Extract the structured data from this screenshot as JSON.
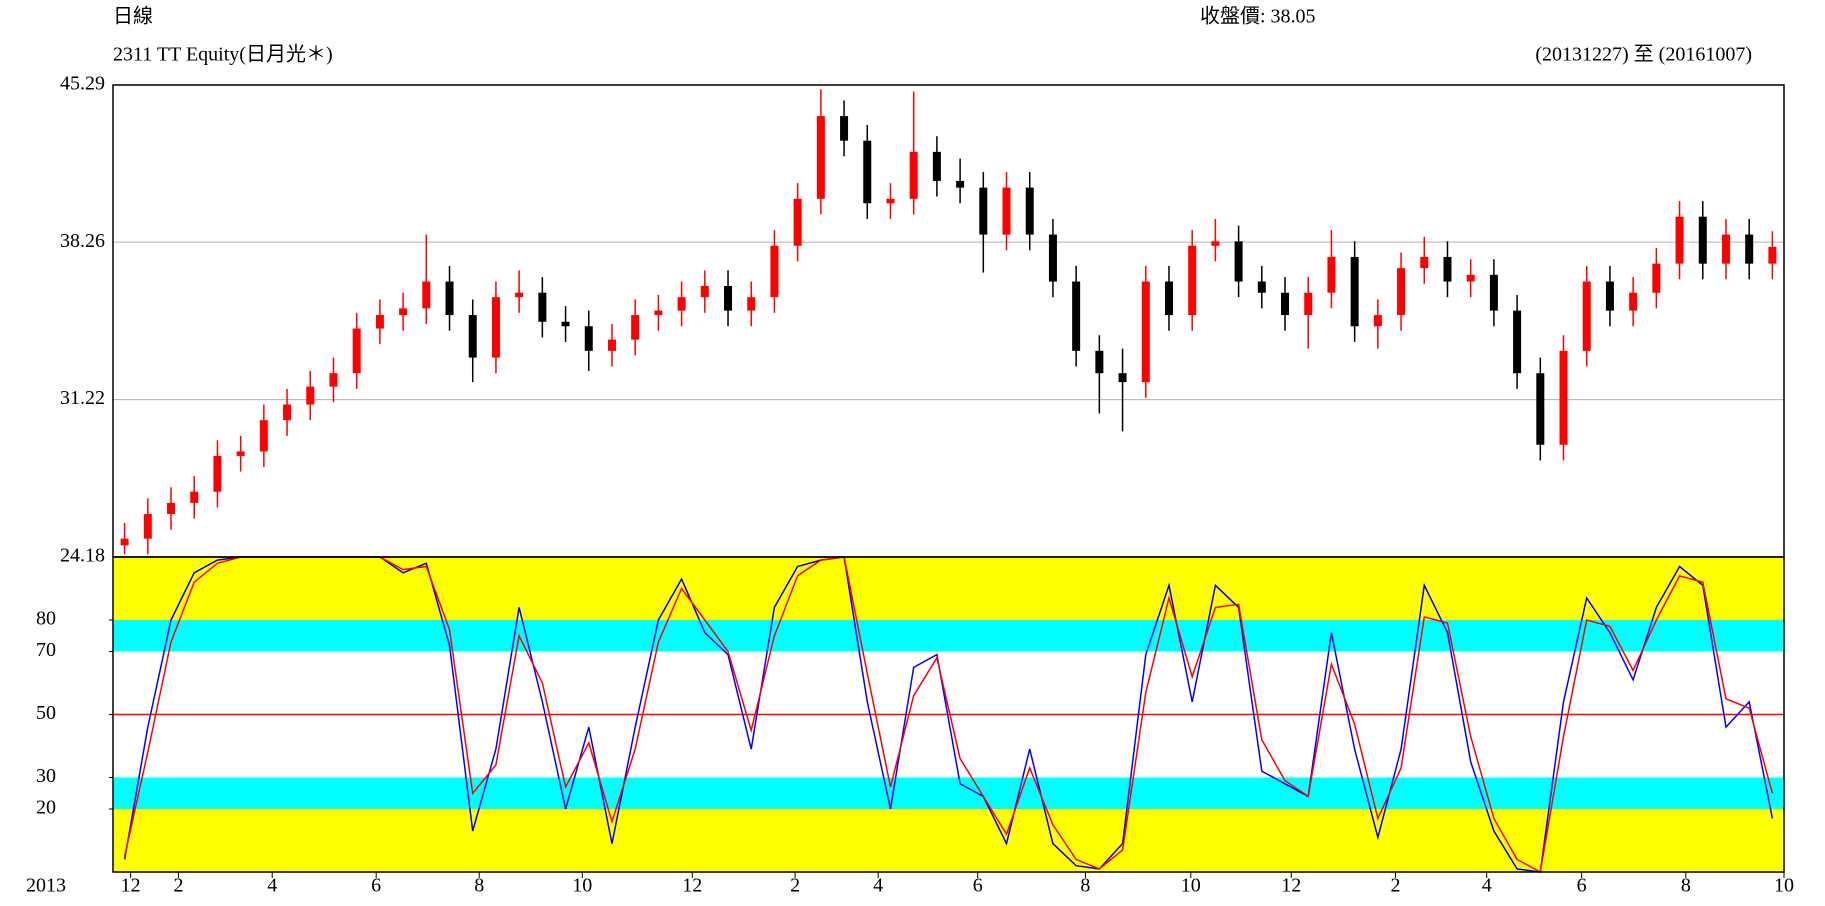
{
  "header": {
    "period": "日線",
    "close": "收盤價: 38.05"
  },
  "chart_data": [
    {
      "type": "candlestick",
      "title": "2311 TT Equity(日月光＊)",
      "subtitle": "(20131227) 至 (20161007)",
      "open": [
        24.7,
        25.0,
        26.1,
        26.6,
        27.1,
        28.7,
        28.9,
        30.3,
        31.0,
        31.8,
        32.4,
        34.4,
        35.0,
        35.3,
        36.5,
        35.0,
        33.1,
        35.8,
        36.0,
        34.7,
        34.5,
        33.4,
        33.9,
        35.0,
        35.2,
        35.8,
        36.3,
        35.2,
        35.8,
        38.1,
        40.2,
        43.9,
        42.8,
        40.0,
        40.2,
        42.3,
        41.0,
        40.7,
        38.6,
        40.7,
        38.6,
        36.5,
        33.4,
        32.4,
        32.0,
        36.5,
        35.0,
        38.1,
        38.3,
        36.5,
        36.0,
        35.0,
        36.0,
        37.6,
        34.5,
        35.0,
        37.1,
        37.6,
        36.5,
        36.8,
        35.2,
        32.4,
        29.2,
        33.4,
        36.5,
        35.2,
        36.0,
        37.3,
        39.4,
        37.3,
        38.6,
        37.3
      ],
      "high": [
        25.7,
        26.8,
        27.3,
        27.8,
        29.4,
        29.6,
        31.0,
        31.7,
        32.5,
        33.1,
        35.1,
        35.7,
        36.0,
        38.6,
        37.2,
        35.7,
        36.5,
        37.0,
        36.7,
        35.4,
        35.2,
        34.6,
        35.7,
        35.9,
        36.5,
        37.0,
        37.0,
        36.5,
        38.8,
        40.9,
        45.1,
        44.6,
        43.5,
        40.9,
        45.0,
        43.0,
        42.0,
        41.4,
        41.4,
        41.4,
        39.3,
        37.2,
        34.1,
        33.5,
        37.2,
        37.2,
        38.8,
        39.3,
        39.0,
        37.2,
        36.7,
        36.7,
        38.8,
        38.3,
        35.7,
        37.8,
        38.5,
        38.3,
        37.5,
        37.5,
        35.9,
        33.1,
        34.1,
        37.2,
        37.2,
        36.7,
        38.0,
        40.1,
        40.1,
        39.3,
        39.3,
        38.75
      ],
      "low": [
        24.3,
        24.3,
        25.4,
        25.9,
        26.4,
        28.0,
        28.2,
        29.6,
        30.3,
        31.1,
        31.7,
        33.7,
        34.3,
        34.6,
        34.3,
        32.0,
        32.4,
        35.1,
        34.0,
        33.8,
        32.5,
        32.7,
        33.2,
        34.3,
        34.5,
        35.1,
        34.5,
        34.5,
        35.1,
        37.4,
        39.5,
        42.1,
        39.3,
        39.3,
        39.5,
        40.3,
        40.0,
        36.9,
        37.9,
        37.9,
        35.8,
        32.7,
        30.6,
        29.8,
        31.3,
        34.3,
        34.3,
        37.4,
        35.8,
        35.3,
        34.3,
        33.5,
        35.3,
        33.8,
        33.5,
        34.3,
        36.4,
        35.8,
        35.8,
        34.5,
        31.7,
        28.5,
        28.5,
        32.7,
        34.5,
        34.5,
        35.3,
        36.6,
        36.6,
        36.6,
        36.6,
        36.6
      ],
      "close": [
        25.0,
        26.1,
        26.6,
        27.1,
        28.7,
        28.9,
        30.3,
        31.0,
        31.8,
        32.4,
        34.4,
        35.0,
        35.3,
        36.5,
        35.0,
        33.1,
        35.8,
        36.0,
        34.7,
        34.5,
        33.4,
        33.9,
        35.0,
        35.2,
        35.8,
        36.3,
        35.2,
        35.8,
        38.1,
        40.2,
        43.9,
        42.8,
        40.0,
        40.2,
        42.3,
        41.0,
        40.7,
        38.6,
        40.7,
        38.6,
        36.5,
        33.4,
        32.4,
        32.0,
        36.5,
        35.0,
        38.1,
        38.3,
        36.5,
        36.0,
        35.0,
        36.0,
        37.6,
        34.5,
        35.0,
        37.1,
        37.6,
        36.5,
        36.8,
        35.2,
        32.4,
        29.2,
        33.4,
        36.5,
        35.2,
        36.0,
        37.3,
        39.4,
        37.3,
        38.6,
        37.3,
        38.05
      ],
      "up_color": "#ff0000",
      "down_color": "#000000",
      "grid_color": "#b0b0b0",
      "xlim": [
        0,
        72
      ],
      "ylim": [
        24.18,
        45.29
      ],
      "yticks": [
        24.18,
        31.22,
        38.26,
        45.29
      ],
      "grid": true
    },
    {
      "type": "line",
      "xlabel": "2013",
      "series": [
        {
          "color": "#0000ff",
          "values": [
            4,
            46,
            80,
            95,
            99,
            100,
            100,
            100,
            100,
            100,
            100,
            100,
            95,
            98,
            72,
            13,
            39,
            84,
            54,
            20,
            46,
            9,
            46,
            80,
            93,
            76,
            69,
            39,
            84,
            97,
            99,
            100,
            54,
            20,
            65,
            69,
            28,
            24,
            9,
            39,
            9,
            2,
            1,
            9,
            69,
            91,
            54,
            91,
            84,
            32,
            28,
            24,
            76,
            39,
            11,
            39,
            91,
            76,
            35,
            13,
            1,
            0,
            54,
            87,
            76,
            61,
            84,
            97,
            91,
            46,
            54,
            17
          ]
        },
        {
          "color": "#ff0000",
          "values": [
            5,
            38,
            73,
            92,
            98,
            100,
            100,
            100,
            100,
            100,
            100,
            100,
            96,
            97,
            77,
            25,
            34,
            75,
            60,
            27,
            41,
            16,
            39,
            73,
            90,
            80,
            70,
            45,
            75,
            94,
            99,
            100,
            63,
            27,
            56,
            68,
            36,
            24,
            12,
            33,
            15,
            4,
            1,
            7,
            57,
            87,
            62,
            84,
            85,
            42,
            29,
            24,
            66,
            47,
            17,
            33,
            81,
            79,
            43,
            17,
            4,
            0,
            43,
            80,
            78,
            64,
            80,
            94,
            92,
            55,
            52,
            25
          ]
        }
      ],
      "xlim": [
        0,
        72
      ],
      "xticks": [
        {
          "value": 0.76,
          "label": "12"
        },
        {
          "value": 2.82,
          "label": "2"
        },
        {
          "value": 6.86,
          "label": "4"
        },
        {
          "value": 11.34,
          "label": "6"
        },
        {
          "value": 15.78,
          "label": "8"
        },
        {
          "value": 20.22,
          "label": "10"
        },
        {
          "value": 24.96,
          "label": "12"
        },
        {
          "value": 29.39,
          "label": "2"
        },
        {
          "value": 32.97,
          "label": "4"
        },
        {
          "value": 37.26,
          "label": "6"
        },
        {
          "value": 41.9,
          "label": "8"
        },
        {
          "value": 46.44,
          "label": "10"
        },
        {
          "value": 50.77,
          "label": "12"
        },
        {
          "value": 55.26,
          "label": "2"
        },
        {
          "value": 59.19,
          "label": "4"
        },
        {
          "value": 63.28,
          "label": "6"
        },
        {
          "value": 67.77,
          "label": "8"
        },
        {
          "value": 72,
          "label": "10"
        }
      ],
      "ylim": [
        0,
        100
      ],
      "yticks": [
        20,
        30,
        50,
        70,
        80
      ],
      "background": "#ffff00",
      "band_color": "#00ffff",
      "midline_color": "#ff0000"
    }
  ]
}
